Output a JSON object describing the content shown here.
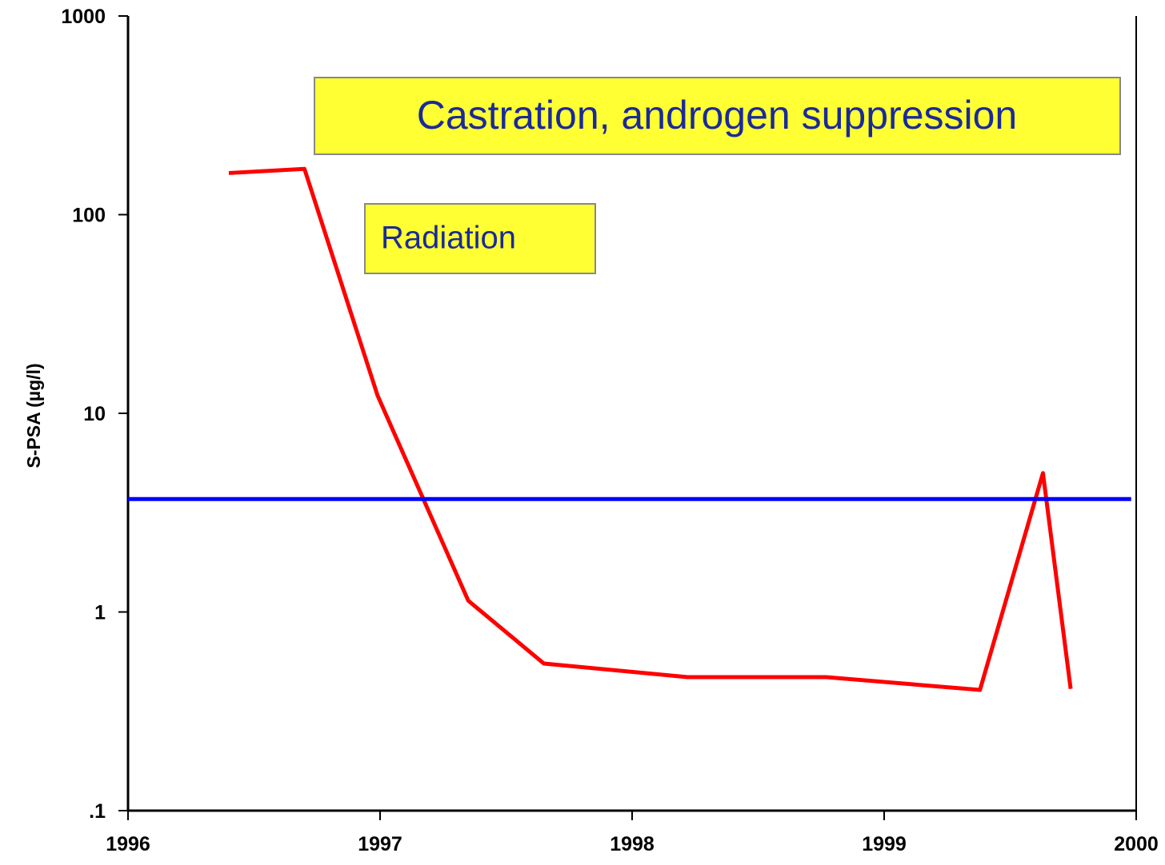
{
  "chart_data": {
    "type": "line",
    "y_label": "S-PSA (µg/l)",
    "annotations": [
      "Castration, androgen suppression",
      "Radiation"
    ],
    "series": [
      {
        "color": "#ff0000",
        "x": [
          1996.4,
          1996.7,
          1996.99,
          1997.35,
          1997.65,
          1998.22,
          1998.77,
          1999.38,
          1999.63,
          1999.74
        ],
        "values": [
          162,
          170,
          12.3,
          1.14,
          0.55,
          0.47,
          0.47,
          0.405,
          5.0,
          0.41
        ]
      },
      {
        "color": "#0000ff",
        "x": [
          1996,
          1999.98
        ],
        "values": [
          3.7,
          3.7
        ]
      }
    ],
    "xlim": [
      1996,
      2000
    ],
    "xticks": [
      1996,
      1997,
      1998,
      1999,
      2000
    ],
    "ylim": [
      0.1,
      1000
    ],
    "yticks": [
      {
        "value": 0.1,
        "label": ".1"
      },
      1,
      10,
      100,
      1000
    ],
    "log_y": true
  }
}
